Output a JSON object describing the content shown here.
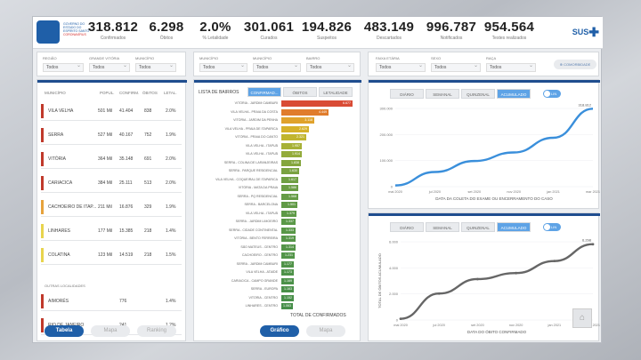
{
  "header": {
    "logo_text_line1": "GOVERNO DO ESTADO DO ESPÍRITO SANTO",
    "logo_text_line2": "CORONAVÍRUS",
    "sus": "SUS",
    "kpis": [
      {
        "value": "318.812",
        "label": "Confirmados"
      },
      {
        "value": "6.298",
        "label": "Óbitos"
      },
      {
        "value": "2.0%",
        "label": "% Letalidade"
      },
      {
        "value": "301.061",
        "label": "Curados"
      },
      {
        "value": "194.826",
        "label": "Suspeitos"
      },
      {
        "value": "483.149",
        "label": "Descartados"
      },
      {
        "value": "996.787",
        "label": "Notificados"
      },
      {
        "value": "954.564",
        "label": "Testes realizados"
      }
    ]
  },
  "filters": {
    "left": [
      {
        "label": "REGIÃO",
        "value": "Todos"
      },
      {
        "label": "GRANDE VITÓRIA",
        "value": "Todos"
      },
      {
        "label": "MUNICÍPIO",
        "value": "Todos"
      }
    ],
    "mid": [
      {
        "label": "MUNICÍPIO",
        "value": "Todos"
      },
      {
        "label": "MUNICÍPIO",
        "value": "Todos"
      },
      {
        "label": "BAIRRO",
        "value": "Todos"
      }
    ],
    "right": [
      {
        "label": "FAIXA ETÁRIA",
        "value": "Todos"
      },
      {
        "label": "SEXO",
        "value": "Todos"
      },
      {
        "label": "RAÇA",
        "value": "Todos"
      }
    ],
    "extra_button": "COMORBIDADE"
  },
  "table": {
    "columns": [
      "MUNICÍPIO",
      "POPUL.",
      "CONFIRM.",
      "ÓBITOS",
      "LETAL."
    ],
    "rows": [
      {
        "name": "VILA VELHA",
        "pop": "501 Mil",
        "conf": "41.404",
        "obitos": "838",
        "letal": "2.0%",
        "color": "#c0392b"
      },
      {
        "name": "SERRA",
        "pop": "527 Mil",
        "conf": "40.167",
        "obitos": "752",
        "letal": "1.9%",
        "color": "#c0392b"
      },
      {
        "name": "VITÓRIA",
        "pop": "364 Mil",
        "conf": "35.148",
        "obitos": "691",
        "letal": "2.0%",
        "color": "#c0392b"
      },
      {
        "name": "CARIACICA",
        "pop": "384 Mil",
        "conf": "25.111",
        "obitos": "513",
        "letal": "2.0%",
        "color": "#c0392b"
      },
      {
        "name": "CACHOEIRO DE ITAP...",
        "pop": "211 Mil",
        "conf": "16.876",
        "obitos": "329",
        "letal": "1.9%",
        "color": "#e6a23c"
      },
      {
        "name": "LINHARES",
        "pop": "177 Mil",
        "conf": "15.385",
        "obitos": "218",
        "letal": "1.4%",
        "color": "#e8d44d"
      },
      {
        "name": "COLATINA",
        "pop": "123 Mil",
        "conf": "14.519",
        "obitos": "218",
        "letal": "1.5%",
        "color": "#e8d44d"
      }
    ],
    "section_label": "OUTRAS LOCALIDADES",
    "rows2": [
      {
        "name": "AIMORÉS",
        "pop": "",
        "conf": "776",
        "obitos": "",
        "letal": "1.4%",
        "color": "#c0392b"
      },
      {
        "name": "RIO DE JANEIRO",
        "pop": "",
        "conf": "241",
        "obitos": "",
        "letal": "1.2%",
        "color": "#c0392b"
      }
    ],
    "buttons": [
      "Tabela",
      "Mapa",
      "Ranking"
    ]
  },
  "bairros": {
    "title": "LISTA DE BAIRROS",
    "tabs": [
      "CONFIRMAD...",
      "ÓBITOS",
      "LETALIDADE"
    ],
    "total_label": "TOTAL DE CONFIRMADOS",
    "buttons": [
      "Gráfico",
      "Mapa"
    ],
    "items": [
      {
        "name": "VITÓRIA - JARDIM CAMBURI",
        "value": 6.677,
        "label": "6.677",
        "color": "#d94b35"
      },
      {
        "name": "VILA VELHA - PRAIA DA COSTA",
        "value": 4.449,
        "label": "4.449",
        "color": "#e07c2c"
      },
      {
        "name": "VITÓRIA - JARDIM DA PENHA",
        "value": 3.118,
        "label": "3.118",
        "color": "#e0a22c"
      },
      {
        "name": "VILA VELHA - PRAIA DE ITAPARICA",
        "value": 2.629,
        "label": "2.629",
        "color": "#d6b12a"
      },
      {
        "name": "VITÓRIA - PRAIA DO CANTO",
        "value": 2.321,
        "label": "2.321",
        "color": "#c1b52e"
      },
      {
        "name": "VILA VELHA - ITAPUÃ",
        "value": 1.957,
        "label": "1.957",
        "color": "#a7b137"
      },
      {
        "name": "VILA VELHA - ITAPUÃ",
        "value": 1.914,
        "label": "1.914",
        "color": "#93ab3b"
      },
      {
        "name": "SERRA - COLINA DE LARANJEIRAS",
        "value": 1.838,
        "label": "1.838",
        "color": "#84a63e"
      },
      {
        "name": "SERRA - PARQUE RESIDENCIAL",
        "value": 1.63,
        "label": "1.630",
        "color": "#79a241"
      },
      {
        "name": "VILA VELHA - COQUEIRAL DE ITAPARICA",
        "value": 1.617,
        "label": "1.617",
        "color": "#6f9f43"
      },
      {
        "name": "VITÓRIA - MATA DA PRAIA",
        "value": 1.586,
        "label": "1.586",
        "color": "#6a9d44"
      },
      {
        "name": "SERRA - PQ RESIDENCIAL",
        "value": 1.568,
        "label": "1.568",
        "color": "#659b45"
      },
      {
        "name": "SERRA - BARCELONA",
        "value": 1.501,
        "label": "1.501",
        "color": "#619a46"
      },
      {
        "name": "VILA VELHA - ITAPUÃ",
        "value": 1.379,
        "label": "1.379",
        "color": "#5d9946"
      },
      {
        "name": "SERRA - JARDIM LIMOEIRO",
        "value": 1.337,
        "label": "1.337",
        "color": "#5a9847"
      },
      {
        "name": "SERRA - CIDADE CONTINENTAL",
        "value": 1.333,
        "label": "1.333",
        "color": "#589747"
      },
      {
        "name": "VITÓRIA - BENTO FERREIRA",
        "value": 1.319,
        "label": "1.319",
        "color": "#569648"
      },
      {
        "name": "SÃO MATEUS - CENTRO",
        "value": 1.314,
        "label": "1.314",
        "color": "#549548"
      },
      {
        "name": "CACHOEIRO - CENTRO",
        "value": 1.231,
        "label": "1.231",
        "color": "#529448"
      },
      {
        "name": "SERRA - JARDIM CAMBURI",
        "value": 1.177,
        "label": "1.177",
        "color": "#509348"
      },
      {
        "name": "VILA VELHA - ATAÍDE",
        "value": 1.173,
        "label": "1.173",
        "color": "#4e9249"
      },
      {
        "name": "CARIACICA - CAMPO GRANDE",
        "value": 1.169,
        "label": "1.169",
        "color": "#4c9149"
      },
      {
        "name": "SERRA - EUROPA",
        "value": 1.163,
        "label": "1.163",
        "color": "#4a9049"
      },
      {
        "name": "VITÓRIA - CENTRO",
        "value": 1.152,
        "label": "1.152",
        "color": "#488f49"
      },
      {
        "name": "LINHARES - CENTRO",
        "value": 1.063,
        "label": "1.063",
        "color": "#468e49"
      }
    ]
  },
  "chart_top": {
    "tabs": [
      "DIÁRIO",
      "SEMANAL",
      "QUINZENAL",
      "ACUMULADO"
    ],
    "toggle": "LIN",
    "xlabel": "DATA DA COLETA DO EXAME OU ENCERRAMENTO DO CASO",
    "end_label": "318.812"
  },
  "chart_bottom": {
    "tabs": [
      "DIÁRIO",
      "SEMANAL",
      "QUINZENAL",
      "ACUMULADO"
    ],
    "toggle": "LIN",
    "xlabel": "DATA DO ÓBITO CONFIRMADO",
    "ylabel": "TOTAL DE ÓBITOS ACUMULADO",
    "end_label": "6.298"
  },
  "chart_data": [
    {
      "type": "line",
      "xlabel": "DATA DA COLETA DO EXAME OU ENCERRAMENTO DO CASO",
      "ylabel": "",
      "x": [
        "mai 2020",
        "jul 2020",
        "set 2020",
        "nov 2020",
        "jan 2021",
        "mar 2021"
      ],
      "ylim": [
        0,
        320000
      ],
      "yticks": [
        "0",
        "100.000",
        "200.000",
        "300.000"
      ],
      "series": [
        {
          "values": [
            5000,
            60000,
            105000,
            140000,
            200000,
            318812
          ]
        }
      ]
    },
    {
      "type": "line",
      "xlabel": "DATA DO ÓBITO CONFIRMADO",
      "ylabel": "TOTAL DE ÓBITOS ACUMULADO",
      "x": [
        "mai 2020",
        "jul 2020",
        "set 2020",
        "nov 2020",
        "jan 2021",
        "mar 2021"
      ],
      "ylim": [
        0,
        6500
      ],
      "yticks": [
        "0",
        "2.000",
        "4.000",
        "6.000"
      ],
      "series": [
        {
          "values": [
            100,
            2200,
            3400,
            3900,
            4900,
            6298
          ]
        }
      ]
    }
  ]
}
